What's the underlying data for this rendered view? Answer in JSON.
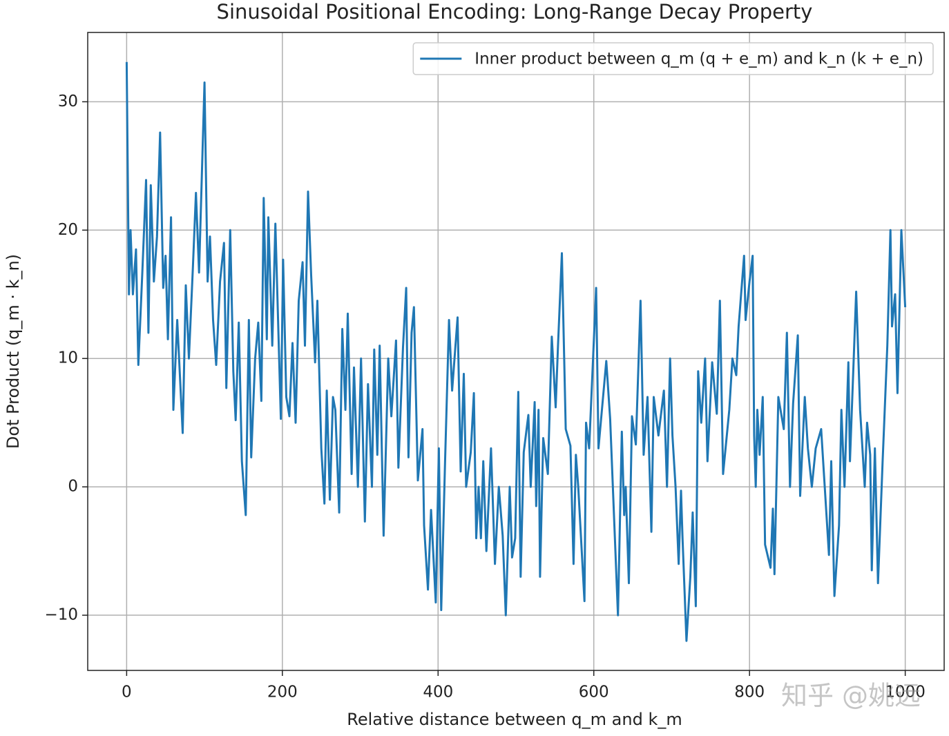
{
  "chart_data": {
    "type": "line",
    "title": "Sinusoidal Positional Encoding: Long-Range Decay Property",
    "xlabel": "Relative distance between q_m and k_m",
    "ylabel": "Dot Product (q_m · k_n)",
    "watermark": "知乎 @姚远",
    "legend": "upper right",
    "grid": true,
    "xlim": [
      -50,
      1050
    ],
    "ylim": [
      -14.3,
      35.4
    ],
    "xticks": [
      0,
      200,
      400,
      600,
      800,
      1000
    ],
    "yticks": [
      {
        "value": -10,
        "label": "−10"
      },
      0,
      10,
      20,
      30
    ],
    "series": [
      {
        "name": "Inner product between q_m (q + e_m) and k_n (k + e_n)",
        "color": "#1f77b4",
        "x": [
          0,
          3,
          5,
          8,
          12,
          15,
          20,
          25,
          28,
          31,
          35,
          39,
          43,
          47,
          50,
          53,
          57,
          60,
          65,
          72,
          76,
          80,
          85,
          89,
          93,
          100,
          104,
          107,
          111,
          115,
          120,
          125,
          128,
          133,
          137,
          140,
          144,
          148,
          153,
          157,
          160,
          165,
          169,
          173,
          176,
          180,
          182,
          187,
          191,
          198,
          201,
          205,
          209,
          213,
          217,
          221,
          226,
          229,
          233,
          237,
          242,
          245,
          250,
          254,
          257,
          261,
          265,
          268,
          273,
          277,
          281,
          284,
          289,
          292,
          297,
          301,
          306,
          310,
          315,
          318,
          322,
          325,
          330,
          336,
          340,
          346,
          349,
          355,
          359,
          362,
          366,
          369,
          374,
          380,
          382,
          387,
          391,
          397,
          401,
          404,
          409,
          414,
          418,
          425,
          429,
          433,
          436,
          442,
          446,
          449,
          452,
          455,
          458,
          462,
          468,
          473,
          478,
          483,
          487,
          492,
          495,
          499,
          503,
          506,
          510,
          516,
          519,
          524,
          526,
          529,
          531,
          535,
          541,
          546,
          551,
          554,
          559,
          564,
          570,
          574,
          577,
          580,
          588,
          590,
          594,
          603,
          606,
          616,
          621,
          631,
          636,
          639,
          641,
          645,
          649,
          654,
          660,
          664,
          669,
          674,
          677,
          683,
          690,
          694,
          698,
          701,
          705,
          709,
          712,
          714,
          719,
          724,
          727,
          731,
          734,
          738,
          743,
          746,
          752,
          758,
          762,
          766,
          774,
          778,
          783,
          786,
          793,
          795,
          800,
          804,
          806,
          808,
          810,
          813,
          817,
          820,
          827,
          830,
          832,
          837,
          844,
          848,
          852,
          856,
          862,
          865,
          871,
          875,
          880,
          885,
          892,
          902,
          905,
          909,
          915,
          918,
          922,
          927,
          929,
          937,
          942,
          948,
          951,
          955,
          957,
          961,
          965,
          971,
          973,
          977,
          981,
          983,
          987,
          990,
          995,
          1000
        ],
        "values": [
          33.1,
          15,
          20,
          15,
          18.5,
          9.5,
          16.5,
          23.9,
          12,
          23.5,
          16,
          19.5,
          27.6,
          15.5,
          18,
          11.5,
          21,
          6,
          13,
          4.2,
          15.7,
          10,
          17,
          22.9,
          16.7,
          31.5,
          16,
          19.5,
          13,
          9.5,
          16,
          19,
          7.7,
          20,
          9,
          5.2,
          12.8,
          2,
          -2.2,
          13,
          2.3,
          10,
          12.8,
          6.7,
          22.5,
          11.5,
          21,
          11,
          20.5,
          5.3,
          17.7,
          7,
          5.5,
          11.2,
          5,
          14.5,
          17.5,
          11,
          23,
          16.5,
          9.7,
          14.5,
          3,
          -1.3,
          7.5,
          -1,
          7,
          6,
          -2,
          12.3,
          6,
          13.5,
          1,
          9.3,
          0,
          10,
          -2.7,
          8,
          0,
          10.7,
          2.5,
          11,
          -3.8,
          10,
          5.5,
          11.4,
          1.5,
          10.9,
          15.5,
          2.3,
          12,
          14,
          0.5,
          4.5,
          -3,
          -8,
          -1.8,
          -9,
          3,
          -9.6,
          2,
          13,
          7.5,
          13.2,
          1.2,
          8.8,
          0,
          2.7,
          7.3,
          -4,
          0,
          -4,
          2,
          -5,
          3,
          -6,
          0,
          -3.8,
          -10,
          0,
          -5.5,
          -4,
          7.4,
          -7,
          2.7,
          5.6,
          0,
          6.6,
          -1.5,
          6,
          -7,
          3.8,
          1,
          11.7,
          6.2,
          11,
          18.2,
          4.5,
          3.2,
          -6,
          2.5,
          0,
          -8.9,
          5,
          3,
          15.5,
          3,
          9.8,
          5.3,
          -10,
          4.3,
          -2.2,
          0,
          -7.5,
          5.5,
          3.3,
          14.5,
          2.5,
          7,
          -3.5,
          7,
          4,
          7.5,
          0,
          10,
          4,
          0,
          -6,
          -0.3,
          -4,
          -12,
          -7,
          -2,
          -9.3,
          9,
          5,
          10,
          2,
          9.7,
          5.7,
          14.5,
          1,
          6,
          10,
          8.7,
          12.5,
          18,
          13,
          16,
          18,
          4,
          0,
          6,
          2.5,
          7,
          -4.5,
          -6.3,
          -1.7,
          -6.8,
          7,
          4.5,
          12,
          0,
          6.5,
          11.8,
          -0.7,
          7,
          3,
          0,
          3,
          4.5,
          -5.3,
          2,
          -8.5,
          -3,
          6,
          0,
          9.7,
          2,
          15.2,
          6,
          0,
          5,
          2.5,
          -6.5,
          3,
          -7.5,
          2,
          5,
          11,
          20,
          12.5,
          15,
          7.3,
          20,
          14
        ]
      }
    ]
  }
}
